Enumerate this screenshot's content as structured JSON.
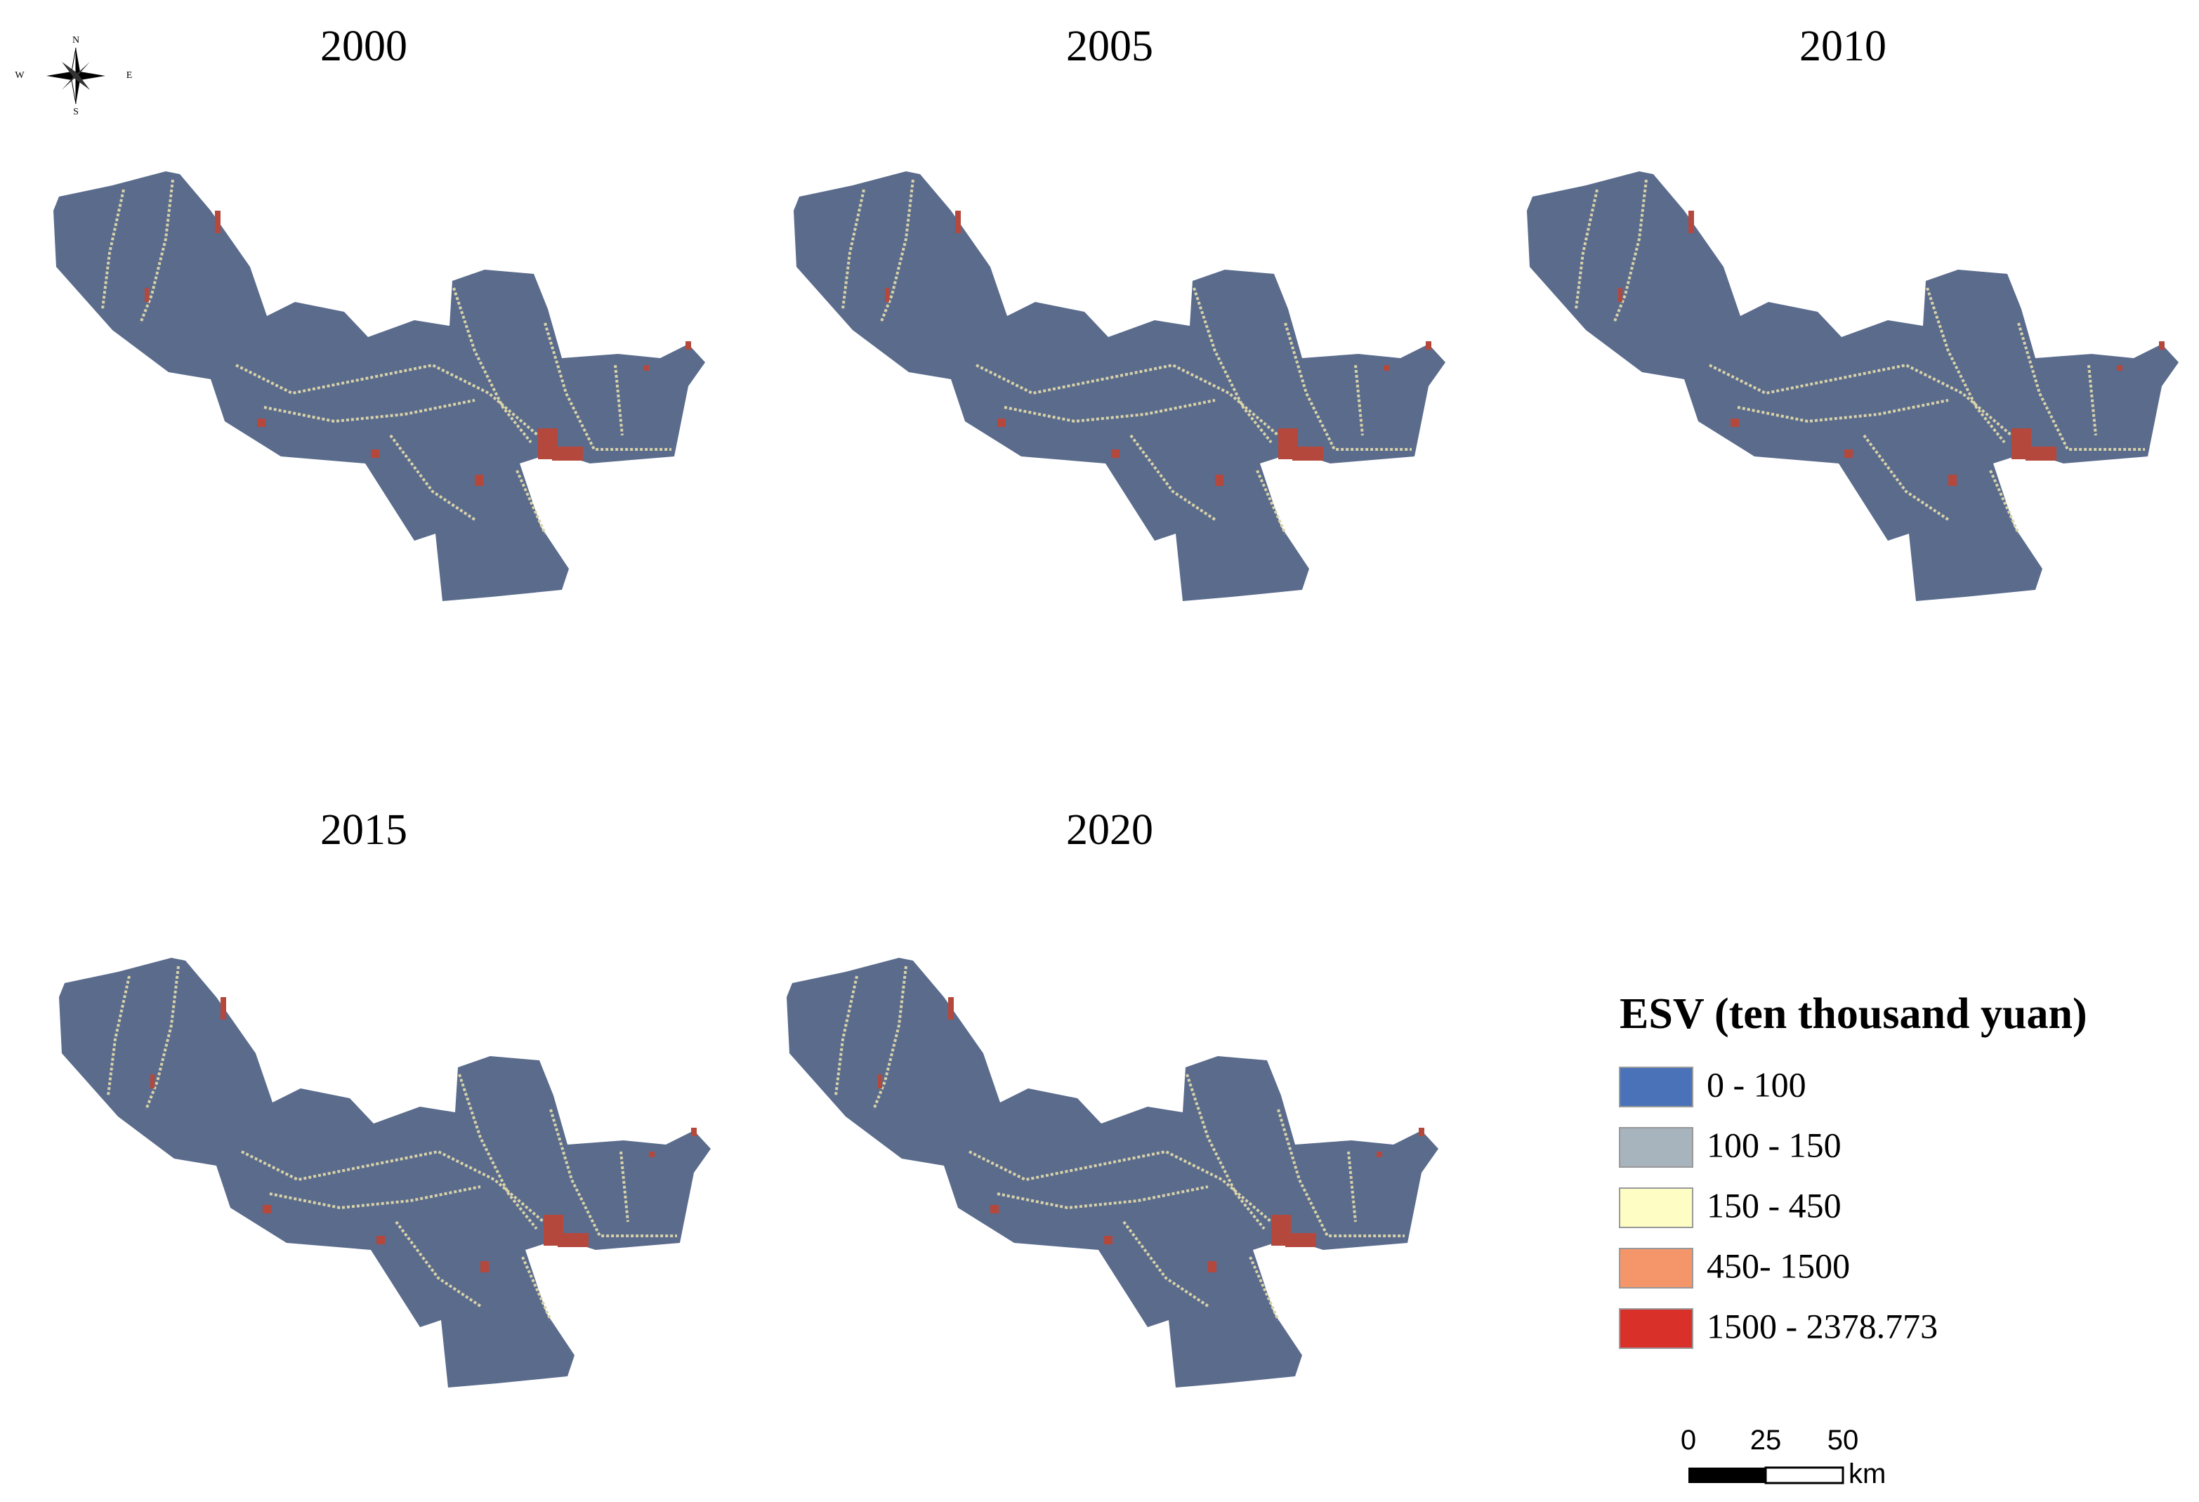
{
  "compass": {
    "north": "N",
    "south": "S",
    "east": "E",
    "west": "W"
  },
  "maps": [
    {
      "year": "2000"
    },
    {
      "year": "2005"
    },
    {
      "year": "2010"
    },
    {
      "year": "2015"
    },
    {
      "year": "2020"
    }
  ],
  "legend": {
    "title": "ESV (ten thousand yuan)",
    "items": [
      {
        "label": "0 - 100",
        "color": "#4a72b8"
      },
      {
        "label": "100 - 150",
        "color": "#a7b3bd"
      },
      {
        "label": "150 - 450",
        "color": "#fdfdc4"
      },
      {
        "label": "450- 1500",
        "color": "#f4956a"
      },
      {
        "label": "1500 - 2378.773",
        "color": "#d9302a"
      }
    ]
  },
  "scale_bar": {
    "ticks": [
      "0",
      "25",
      "50"
    ],
    "unit": "km"
  }
}
